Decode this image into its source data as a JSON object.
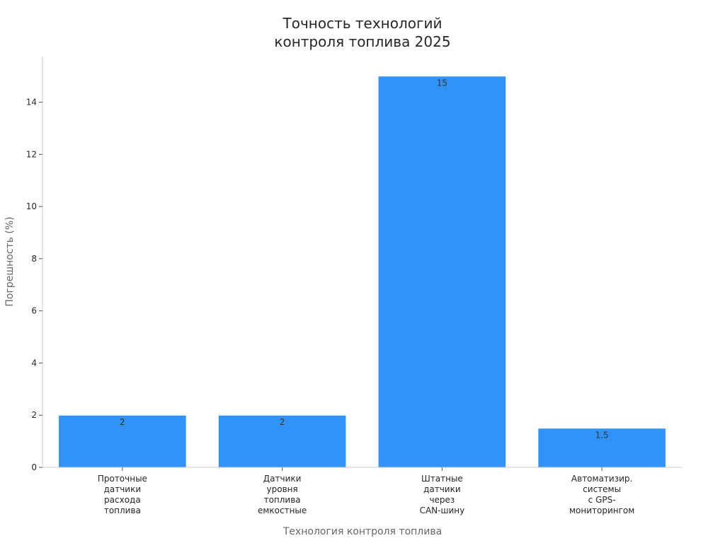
{
  "chart_data": {
    "type": "bar",
    "title": [
      "Точность технологий",
      "контроля топлива 2025"
    ],
    "xlabel": "Технология контроля топлива",
    "ylabel": "Погрешность (%)",
    "categories": [
      [
        "Проточные",
        "датчики",
        "расхода",
        "топлива"
      ],
      [
        "Датчики",
        "уровня",
        "топлива",
        "емкостные"
      ],
      [
        "Штатные",
        "датчики",
        "через",
        "CAN-шину"
      ],
      [
        "Автоматизир.",
        "системы",
        "с GPS-",
        "мониторингом"
      ]
    ],
    "values": [
      2,
      2,
      15,
      1.5
    ],
    "data_labels": [
      "2",
      "2",
      "15",
      "1.5"
    ],
    "ylim": [
      0,
      15.75
    ],
    "yticks": [
      0,
      2,
      4,
      6,
      8,
      10,
      12,
      14
    ],
    "grid": false,
    "legend": "none",
    "colors": {
      "bar": "#2f93fa",
      "axis": "#cccccc"
    }
  }
}
